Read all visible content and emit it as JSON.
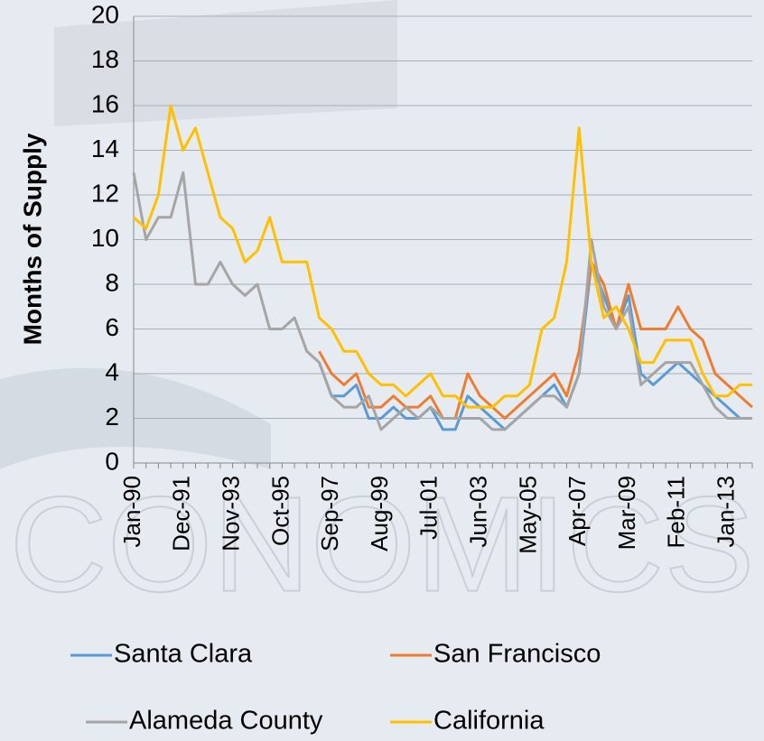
{
  "chart_data": {
    "type": "line",
    "y_label": "Months of Supply",
    "watermark": "CONOMICS",
    "categories": [
      "Jan-90",
      null,
      null,
      null,
      "Dec-91",
      null,
      null,
      null,
      "Nov-93",
      null,
      null,
      null,
      "Oct-95",
      null,
      null,
      null,
      "Sep-97",
      null,
      null,
      null,
      "Aug-99",
      null,
      null,
      null,
      "Jul-01",
      null,
      null,
      null,
      "Jun-03",
      null,
      null,
      null,
      "May-05",
      null,
      null,
      null,
      "Apr-07",
      null,
      null,
      null,
      "Mar-09",
      null,
      null,
      null,
      "Feb-11",
      null,
      null,
      null,
      "Jan-13",
      null,
      null
    ],
    "ylim": [
      0,
      20
    ],
    "yticks": [
      0,
      2,
      4,
      6,
      8,
      10,
      12,
      14,
      16,
      18,
      20
    ],
    "grid": true,
    "series": [
      {
        "name": "Santa Clara",
        "color": "#5b9bd5",
        "values": [
          null,
          null,
          null,
          null,
          null,
          null,
          null,
          null,
          null,
          null,
          null,
          null,
          null,
          null,
          null,
          4.5,
          3,
          3,
          3.5,
          2,
          2,
          2.5,
          2,
          2,
          2.5,
          1.5,
          1.5,
          3,
          2.5,
          2,
          1.5,
          2,
          2.5,
          3,
          3.5,
          2.5,
          4,
          9,
          7.5,
          6,
          7.5,
          4,
          3.5,
          4,
          4.5,
          4,
          3.5,
          3,
          2.5,
          2,
          2
        ]
      },
      {
        "name": "San Francisco",
        "color": "#ed7d31",
        "values": [
          null,
          null,
          null,
          null,
          null,
          null,
          null,
          null,
          null,
          null,
          null,
          null,
          null,
          null,
          null,
          5,
          4,
          3.5,
          4,
          2.5,
          2.5,
          3,
          2.5,
          2.5,
          3,
          2,
          2,
          4,
          3,
          2.5,
          2,
          2.5,
          3,
          3.5,
          4,
          3,
          5,
          9,
          8,
          6,
          8,
          6,
          6,
          6,
          7,
          6,
          5.5,
          4,
          3.5,
          3,
          2.5
        ]
      },
      {
        "name": "Alameda County",
        "color": "#a5a5a5",
        "values": [
          13,
          10,
          11,
          11,
          13,
          8,
          8,
          9,
          8,
          7.5,
          8,
          6,
          6,
          6.5,
          5,
          4.5,
          3,
          2.5,
          2.5,
          3,
          1.5,
          2,
          2.5,
          2,
          2.5,
          2,
          2,
          2,
          2,
          1.5,
          1.5,
          2,
          2.5,
          3,
          3,
          2.5,
          4,
          10,
          7,
          6,
          7,
          3.5,
          4,
          4.5,
          4.5,
          4.5,
          3.5,
          2.5,
          2,
          2,
          2
        ]
      },
      {
        "name": "California",
        "color": "#ffc000",
        "values": [
          11,
          10.5,
          12,
          16,
          14,
          15,
          13,
          11,
          10.5,
          9,
          9.5,
          11,
          9,
          9,
          9,
          6.5,
          6,
          5,
          5,
          4,
          3.5,
          3.5,
          3,
          3.5,
          4,
          3,
          3,
          2.5,
          2.5,
          2.5,
          3,
          3,
          3.5,
          6,
          6.5,
          9,
          15,
          9,
          6.5,
          7,
          6,
          4.5,
          4.5,
          5.5,
          5.5,
          5.5,
          4,
          3,
          3,
          3.5,
          3.5
        ]
      }
    ]
  }
}
